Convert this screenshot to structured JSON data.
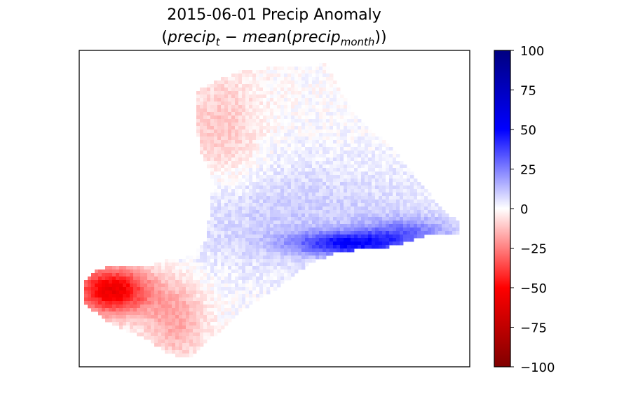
{
  "chart_data": {
    "type": "heatmap",
    "title_line1": "2015-06-01 Precip Anomaly",
    "title_line2": {
      "open": "(",
      "term1": "precip",
      "term1_sub": "t",
      "minus": " − ",
      "func": "mean",
      "paren_open": "(",
      "term2": "precip",
      "term2_sub": "month",
      "close": "))"
    },
    "xlabel": "",
    "ylabel": "",
    "axes_ticks_visible": false,
    "colormap": "seismic_r",
    "colormap_stops": [
      "#800000",
      "#ff0000",
      "#ffffff",
      "#0000ff",
      "#000080"
    ],
    "colorbar": {
      "vmin": -100,
      "vmax": 100,
      "ticks": [
        100,
        75,
        50,
        25,
        0,
        -25,
        -50,
        -75,
        -100
      ],
      "tick_labels": [
        "100",
        "75",
        "50",
        "25",
        "0",
        "−25",
        "−50",
        "−75",
        "−100"
      ]
    },
    "regions_summary": [
      {
        "region": "south-west tip",
        "anomaly": -55
      },
      {
        "region": "northern lobe",
        "anomaly": -10
      },
      {
        "region": "central band",
        "anomaly": 10
      },
      {
        "region": "south-east edge",
        "anomaly": 45
      }
    ]
  }
}
